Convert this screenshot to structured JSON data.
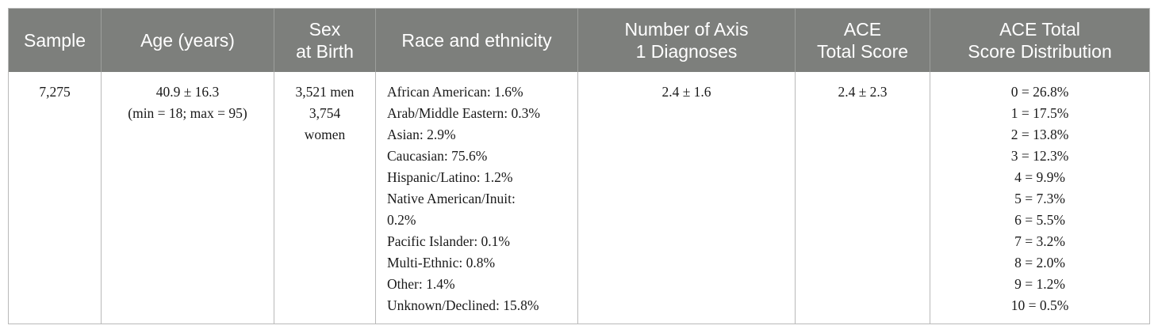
{
  "table": {
    "headers": [
      "Sample",
      "Age (years)",
      "Sex\nat Birth",
      "Race and ethnicity",
      "Number of Axis\n1 Diagnoses",
      "ACE\nTotal Score",
      "ACE Total\nScore Distribution"
    ],
    "row": {
      "sample": "7,275",
      "age": [
        "40.9 ± 16.3",
        "(min = 18; max = 95)"
      ],
      "sex": [
        "3,521 men",
        "3,754",
        "women"
      ],
      "race": [
        "African American: 1.6%",
        "Arab/Middle Eastern: 0.3%",
        "Asian: 2.9%",
        "Caucasian: 75.6%",
        "Hispanic/Latino: 1.2%",
        "Native American/Inuit:",
        "0.2%",
        "Pacific Islander: 0.1%",
        "Multi-Ethnic: 0.8%",
        "Other: 1.4%",
        "Unknown/Declined: 15.8%"
      ],
      "axis1": "2.4 ± 1.6",
      "ace_total": "2.4 ± 2.3",
      "ace_distribution": [
        "0 = 26.8%",
        "1 = 17.5%",
        "2 = 13.8%",
        "3 = 12.3%",
        "4 = 9.9%",
        "5 = 7.3%",
        "6 = 5.5%",
        "7 = 3.2%",
        "8 = 2.0%",
        "9 = 1.2%",
        "10 = 0.5%"
      ]
    }
  }
}
